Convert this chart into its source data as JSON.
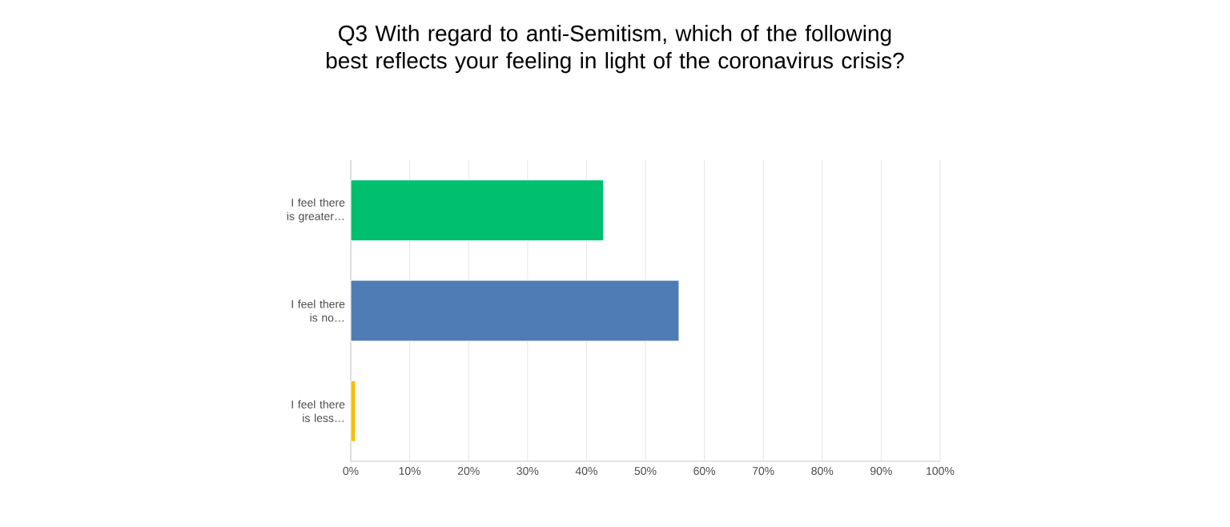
{
  "chart_data": {
    "type": "bar",
    "orientation": "horizontal",
    "title": "Q3 With regard to anti-Semitism, which of the following best reflects your feeling in light of the coronavirus crisis?",
    "categories": [
      "I feel there is greater…",
      "I feel there is no…",
      "I feel there is less…"
    ],
    "values": [
      42.9,
      55.7,
      0.8
    ],
    "colors": [
      "#00bf6f",
      "#507cb6",
      "#f9be00"
    ],
    "xlim": [
      0,
      100
    ],
    "xticks": [
      {
        "value": 0,
        "label": "0%"
      },
      {
        "value": 10,
        "label": "10%"
      },
      {
        "value": 20,
        "label": "20%"
      },
      {
        "value": 30,
        "label": "30%"
      },
      {
        "value": 40,
        "label": "40%"
      },
      {
        "value": 50,
        "label": "50%"
      },
      {
        "value": 60,
        "label": "60%"
      },
      {
        "value": 70,
        "label": "70%"
      },
      {
        "value": 80,
        "label": "80%"
      },
      {
        "value": 90,
        "label": "90%"
      },
      {
        "value": 100,
        "label": "100%"
      }
    ],
    "grid": "x"
  }
}
